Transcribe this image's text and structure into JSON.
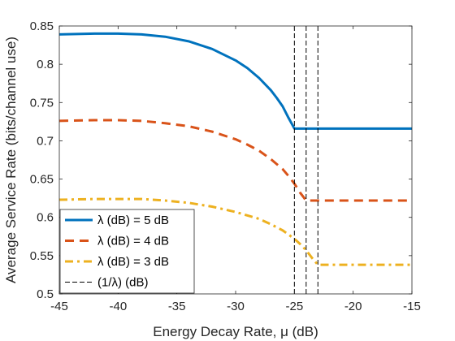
{
  "chart_data": {
    "type": "line",
    "xlabel": "Energy Decay Rate, μ (dB)",
    "ylabel": "Average Service Rate (bits/channel use)",
    "xlim": [
      -45,
      -15
    ],
    "ylim": [
      0.5,
      0.85
    ],
    "xticks": [
      -45,
      -40,
      -35,
      -30,
      -25,
      -20,
      -15
    ],
    "yticks": [
      0.5,
      0.55,
      0.6,
      0.65,
      0.7,
      0.75,
      0.8,
      0.85
    ],
    "xtick_labels": [
      "-45",
      "-40",
      "-35",
      "-30",
      "-25",
      "-20",
      "-15"
    ],
    "ytick_labels": [
      "0.5",
      "0.55",
      "0.6",
      "0.65",
      "0.7",
      "0.75",
      "0.8",
      "0.85"
    ],
    "grid": false,
    "legend_position": "bottom-left",
    "series": [
      {
        "name": "λ (dB) = 5 dB",
        "color": "#0072BD",
        "style": "solid",
        "x": [
          -45,
          -42,
          -40,
          -38,
          -36,
          -34,
          -32,
          -30,
          -29,
          -28,
          -27,
          -26.5,
          -26,
          -25.5,
          -25,
          -22,
          -18,
          -15
        ],
        "y": [
          0.839,
          0.84,
          0.84,
          0.839,
          0.836,
          0.83,
          0.82,
          0.805,
          0.795,
          0.782,
          0.766,
          0.756,
          0.745,
          0.73,
          0.716,
          0.716,
          0.716,
          0.716
        ]
      },
      {
        "name": "λ (dB) = 4 dB",
        "color": "#D95319",
        "style": "dashed",
        "x": [
          -45,
          -42,
          -40,
          -38,
          -36,
          -34,
          -32,
          -30,
          -29,
          -28,
          -27,
          -26,
          -25.5,
          -25,
          -24.5,
          -24,
          -20,
          -15
        ],
        "y": [
          0.726,
          0.727,
          0.727,
          0.726,
          0.723,
          0.719,
          0.712,
          0.702,
          0.695,
          0.687,
          0.676,
          0.663,
          0.654,
          0.644,
          0.632,
          0.622,
          0.622,
          0.622
        ]
      },
      {
        "name": "λ (dB) = 3 dB",
        "color": "#EDB120",
        "style": "dashdot",
        "x": [
          -45,
          -42,
          -40,
          -38,
          -36,
          -34,
          -32,
          -30,
          -28,
          -27,
          -26,
          -25,
          -24.5,
          -24,
          -23.5,
          -23,
          -20,
          -15
        ],
        "y": [
          0.623,
          0.624,
          0.624,
          0.624,
          0.622,
          0.619,
          0.614,
          0.607,
          0.598,
          0.591,
          0.583,
          0.572,
          0.565,
          0.557,
          0.547,
          0.538,
          0.538,
          0.538
        ]
      },
      {
        "name": "(1/λ) (dB)",
        "color": "#000000",
        "style": "thin-dashed",
        "vlines": [
          -25,
          -24,
          -23
        ]
      }
    ]
  }
}
